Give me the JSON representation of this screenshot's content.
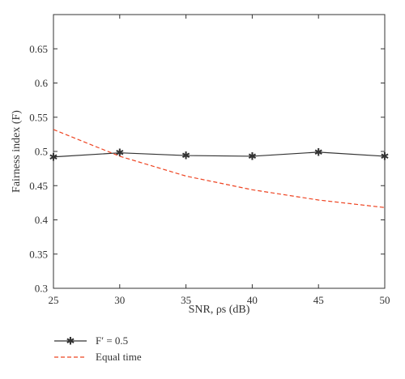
{
  "chart_data": {
    "type": "line",
    "x": [
      25,
      30,
      35,
      40,
      45,
      50
    ],
    "xlim": [
      25,
      50
    ],
    "ylim": [
      0.3,
      0.7
    ],
    "xticks": [
      "25",
      "30",
      "35",
      "40",
      "45",
      "50"
    ],
    "yticks": [
      "0.3",
      "0.35",
      "0.4",
      "0.45",
      "0.5",
      "0.55",
      "0.6",
      "0.65"
    ],
    "xlabel": "SNR, ρs (dB)",
    "ylabel": "Fairness index (F)",
    "grid": false,
    "legend_position": "below-left",
    "series": [
      {
        "name": "F′ = 0.5",
        "values": [
          0.492,
          0.498,
          0.494,
          0.493,
          0.499,
          0.493
        ],
        "color": "#333333",
        "line_style": "solid",
        "marker": "asterisk"
      },
      {
        "name": "Equal time",
        "values": [
          0.532,
          0.493,
          0.464,
          0.444,
          0.429,
          0.418
        ],
        "color": "#ee4422",
        "line_style": "dashed",
        "marker": "none"
      }
    ]
  }
}
